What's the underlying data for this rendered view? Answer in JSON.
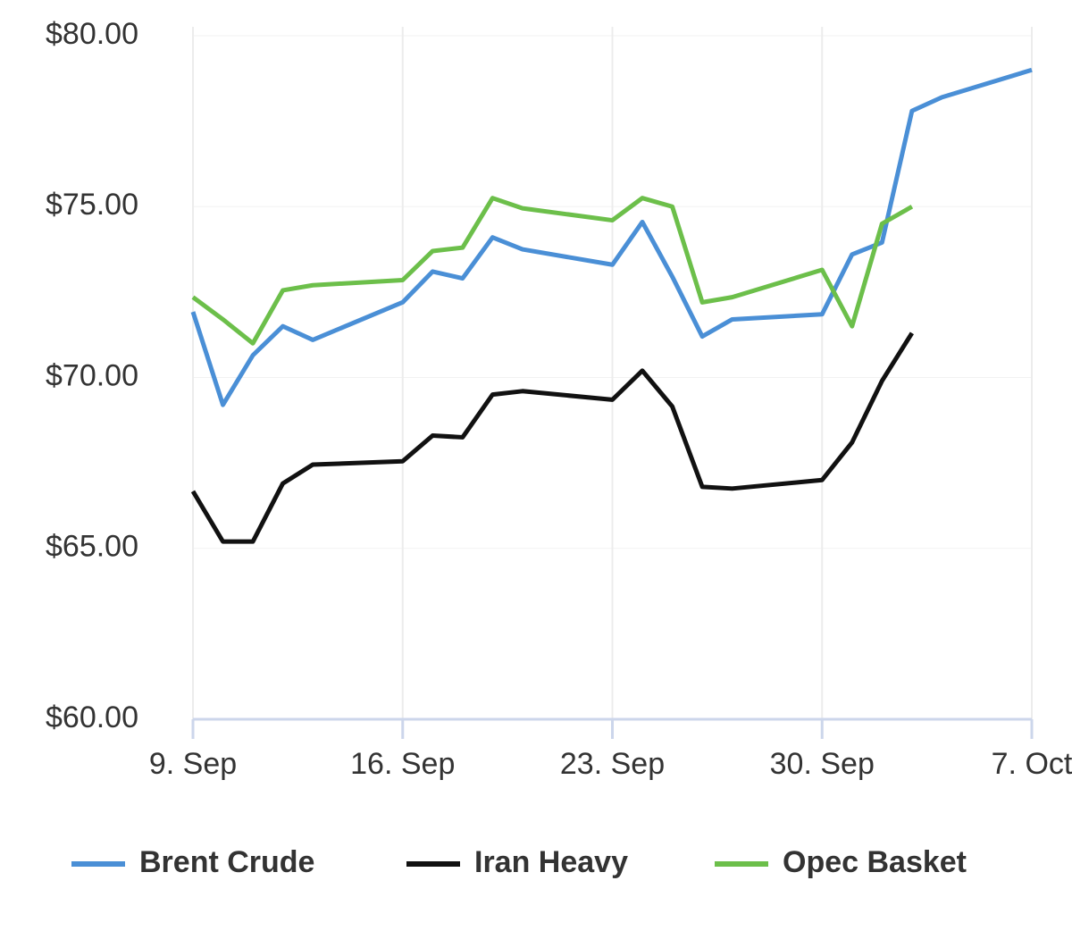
{
  "chart_data": {
    "type": "line",
    "x": [
      0,
      1,
      2,
      3,
      4,
      7,
      8,
      9,
      10,
      11,
      14,
      15,
      16,
      17,
      18,
      21,
      22,
      23,
      24,
      25,
      28
    ],
    "series": [
      {
        "name": "Brent Crude",
        "color": "#4a8fd6",
        "values": [
          71.92,
          69.2,
          70.65,
          71.5,
          71.1,
          72.2,
          73.1,
          72.9,
          74.1,
          73.75,
          73.3,
          74.55,
          72.95,
          71.2,
          71.7,
          71.85,
          73.6,
          73.95,
          77.8,
          78.2,
          79.0
        ]
      },
      {
        "name": "Iran Heavy",
        "color": "#111111",
        "values": [
          66.67,
          65.2,
          65.2,
          66.9,
          67.45,
          67.55,
          68.3,
          68.25,
          69.5,
          69.6,
          69.35,
          70.2,
          69.15,
          66.8,
          66.75,
          67.0,
          68.1,
          69.9,
          71.3,
          null,
          null
        ]
      },
      {
        "name": "Opec Basket",
        "color": "#6cbf4a",
        "values": [
          72.35,
          71.7,
          71.0,
          72.55,
          72.7,
          72.85,
          73.7,
          73.8,
          75.25,
          74.95,
          74.6,
          75.25,
          75.0,
          72.2,
          72.35,
          73.15,
          71.5,
          74.5,
          75.0,
          null,
          null
        ]
      }
    ],
    "xlim": [
      0,
      28
    ],
    "xticks": [
      {
        "value": 0,
        "label": "9. Sep"
      },
      {
        "value": 7,
        "label": "16. Sep"
      },
      {
        "value": 14,
        "label": "23. Sep"
      },
      {
        "value": 21,
        "label": "30. Sep"
      },
      {
        "value": 28,
        "label": "7. Oct"
      }
    ],
    "ylim": [
      60,
      80
    ],
    "yticks": [
      {
        "value": 60,
        "label": "$60.00"
      },
      {
        "value": 65,
        "label": "$65.00"
      },
      {
        "value": 70,
        "label": "$70.00"
      },
      {
        "value": 75,
        "label": "$75.00"
      },
      {
        "value": 80,
        "label": "$80.00"
      }
    ],
    "grid": true,
    "legend": "bottom"
  }
}
